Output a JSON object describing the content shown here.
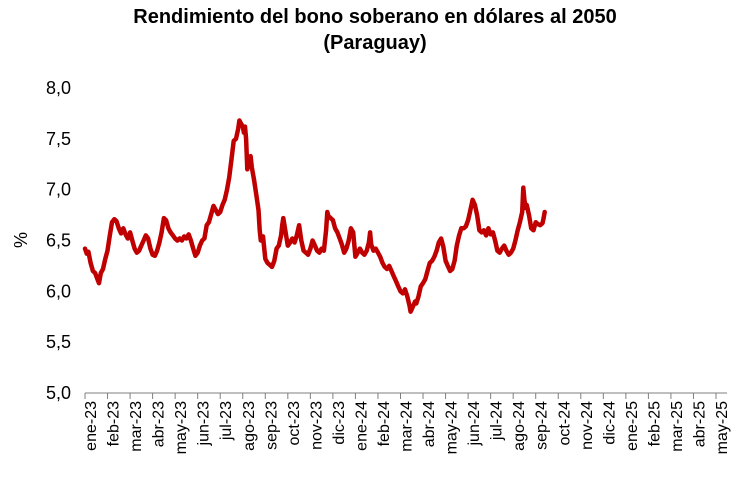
{
  "chart_data": {
    "type": "line",
    "title": "Rendimiento del bono soberano en dólares al 2050",
    "subtitle": "(Paraguay)",
    "ylabel": "%",
    "xlabel": "",
    "ylim": [
      5.0,
      8.0
    ],
    "y_ticks": [
      "5,0",
      "5,5",
      "6,0",
      "6,5",
      "7,0",
      "7,5",
      "8,0"
    ],
    "x_tick_labels": [
      "ene-23",
      "feb-23",
      "mar-23",
      "abr-23",
      "may-23",
      "jun-23",
      "jul-23",
      "ago-23",
      "sep-23",
      "oct-23",
      "nov-23",
      "dic-23",
      "ene-24",
      "feb-24",
      "mar-24",
      "abr-24",
      "may-24",
      "jun-24",
      "jul-24",
      "ago-24",
      "sep-24",
      "oct-24",
      "nov-24",
      "dic-24",
      "ene-25",
      "feb-25",
      "mar-25",
      "abr-25",
      "may-25"
    ],
    "grid": false,
    "legend": "none",
    "series": [
      {
        "color": "#c00000",
        "points": [
          [
            0.0,
            6.42
          ],
          [
            0.08,
            6.37
          ],
          [
            0.15,
            6.39
          ],
          [
            0.25,
            6.28
          ],
          [
            0.35,
            6.2
          ],
          [
            0.45,
            6.18
          ],
          [
            0.55,
            6.12
          ],
          [
            0.62,
            6.08
          ],
          [
            0.7,
            6.18
          ],
          [
            0.8,
            6.22
          ],
          [
            0.9,
            6.32
          ],
          [
            1.0,
            6.4
          ],
          [
            1.1,
            6.55
          ],
          [
            1.2,
            6.68
          ],
          [
            1.3,
            6.71
          ],
          [
            1.4,
            6.69
          ],
          [
            1.5,
            6.62
          ],
          [
            1.6,
            6.57
          ],
          [
            1.7,
            6.62
          ],
          [
            1.8,
            6.56
          ],
          [
            1.9,
            6.52
          ],
          [
            2.0,
            6.58
          ],
          [
            2.1,
            6.5
          ],
          [
            2.2,
            6.42
          ],
          [
            2.3,
            6.38
          ],
          [
            2.4,
            6.4
          ],
          [
            2.5,
            6.45
          ],
          [
            2.6,
            6.5
          ],
          [
            2.7,
            6.55
          ],
          [
            2.8,
            6.52
          ],
          [
            2.9,
            6.42
          ],
          [
            3.0,
            6.36
          ],
          [
            3.1,
            6.35
          ],
          [
            3.2,
            6.4
          ],
          [
            3.3,
            6.48
          ],
          [
            3.4,
            6.58
          ],
          [
            3.5,
            6.72
          ],
          [
            3.6,
            6.7
          ],
          [
            3.7,
            6.62
          ],
          [
            3.8,
            6.58
          ],
          [
            3.9,
            6.55
          ],
          [
            4.0,
            6.52
          ],
          [
            4.1,
            6.5
          ],
          [
            4.2,
            6.52
          ],
          [
            4.3,
            6.5
          ],
          [
            4.4,
            6.54
          ],
          [
            4.5,
            6.52
          ],
          [
            4.6,
            6.56
          ],
          [
            4.7,
            6.5
          ],
          [
            4.8,
            6.42
          ],
          [
            4.9,
            6.35
          ],
          [
            5.0,
            6.38
          ],
          [
            5.1,
            6.45
          ],
          [
            5.2,
            6.5
          ],
          [
            5.3,
            6.52
          ],
          [
            5.4,
            6.65
          ],
          [
            5.5,
            6.68
          ],
          [
            5.6,
            6.76
          ],
          [
            5.7,
            6.84
          ],
          [
            5.8,
            6.8
          ],
          [
            5.9,
            6.76
          ],
          [
            6.0,
            6.78
          ],
          [
            6.1,
            6.85
          ],
          [
            6.2,
            6.9
          ],
          [
            6.3,
            7.0
          ],
          [
            6.4,
            7.12
          ],
          [
            6.5,
            7.3
          ],
          [
            6.6,
            7.48
          ],
          [
            6.7,
            7.5
          ],
          [
            6.8,
            7.6
          ],
          [
            6.85,
            7.68
          ],
          [
            6.9,
            7.66
          ],
          [
            7.0,
            7.62
          ],
          [
            7.05,
            7.56
          ],
          [
            7.1,
            7.62
          ],
          [
            7.15,
            7.5
          ],
          [
            7.2,
            7.2
          ],
          [
            7.3,
            7.3
          ],
          [
            7.35,
            7.33
          ],
          [
            7.4,
            7.22
          ],
          [
            7.5,
            7.1
          ],
          [
            7.6,
            6.95
          ],
          [
            7.7,
            6.8
          ],
          [
            7.75,
            6.6
          ],
          [
            7.8,
            6.5
          ],
          [
            7.9,
            6.54
          ],
          [
            8.0,
            6.32
          ],
          [
            8.1,
            6.28
          ],
          [
            8.2,
            6.26
          ],
          [
            8.3,
            6.24
          ],
          [
            8.4,
            6.3
          ],
          [
            8.5,
            6.42
          ],
          [
            8.6,
            6.45
          ],
          [
            8.7,
            6.55
          ],
          [
            8.75,
            6.65
          ],
          [
            8.8,
            6.72
          ],
          [
            8.9,
            6.58
          ],
          [
            9.0,
            6.45
          ],
          [
            9.1,
            6.48
          ],
          [
            9.2,
            6.52
          ],
          [
            9.3,
            6.48
          ],
          [
            9.4,
            6.55
          ],
          [
            9.5,
            6.65
          ],
          [
            9.6,
            6.5
          ],
          [
            9.7,
            6.4
          ],
          [
            9.8,
            6.38
          ],
          [
            9.9,
            6.36
          ],
          [
            10.0,
            6.42
          ],
          [
            10.1,
            6.5
          ],
          [
            10.2,
            6.45
          ],
          [
            10.3,
            6.4
          ],
          [
            10.4,
            6.38
          ],
          [
            10.5,
            6.42
          ],
          [
            10.6,
            6.4
          ],
          [
            10.7,
            6.6
          ],
          [
            10.75,
            6.78
          ],
          [
            10.8,
            6.74
          ],
          [
            10.9,
            6.72
          ],
          [
            11.0,
            6.7
          ],
          [
            11.1,
            6.62
          ],
          [
            11.2,
            6.58
          ],
          [
            11.3,
            6.52
          ],
          [
            11.4,
            6.46
          ],
          [
            11.5,
            6.38
          ],
          [
            11.6,
            6.42
          ],
          [
            11.7,
            6.5
          ],
          [
            11.8,
            6.62
          ],
          [
            11.9,
            6.58
          ],
          [
            12.0,
            6.34
          ],
          [
            12.1,
            6.38
          ],
          [
            12.2,
            6.42
          ],
          [
            12.3,
            6.38
          ],
          [
            12.4,
            6.36
          ],
          [
            12.5,
            6.4
          ],
          [
            12.6,
            6.48
          ],
          [
            12.65,
            6.58
          ],
          [
            12.7,
            6.46
          ],
          [
            12.8,
            6.4
          ],
          [
            12.9,
            6.42
          ],
          [
            13.0,
            6.38
          ],
          [
            13.1,
            6.34
          ],
          [
            13.2,
            6.28
          ],
          [
            13.3,
            6.24
          ],
          [
            13.4,
            6.22
          ],
          [
            13.5,
            6.25
          ],
          [
            13.6,
            6.2
          ],
          [
            13.7,
            6.15
          ],
          [
            13.8,
            6.1
          ],
          [
            13.9,
            6.05
          ],
          [
            14.0,
            6.0
          ],
          [
            14.1,
            5.98
          ],
          [
            14.2,
            6.02
          ],
          [
            14.3,
            5.95
          ],
          [
            14.4,
            5.86
          ],
          [
            14.45,
            5.8
          ],
          [
            14.55,
            5.85
          ],
          [
            14.65,
            5.9
          ],
          [
            14.7,
            5.88
          ],
          [
            14.8,
            5.95
          ],
          [
            14.9,
            6.05
          ],
          [
            15.0,
            6.08
          ],
          [
            15.1,
            6.12
          ],
          [
            15.2,
            6.2
          ],
          [
            15.3,
            6.28
          ],
          [
            15.4,
            6.3
          ],
          [
            15.5,
            6.34
          ],
          [
            15.6,
            6.4
          ],
          [
            15.7,
            6.48
          ],
          [
            15.8,
            6.52
          ],
          [
            15.9,
            6.44
          ],
          [
            16.0,
            6.3
          ],
          [
            16.1,
            6.25
          ],
          [
            16.2,
            6.2
          ],
          [
            16.3,
            6.22
          ],
          [
            16.4,
            6.3
          ],
          [
            16.5,
            6.45
          ],
          [
            16.6,
            6.55
          ],
          [
            16.7,
            6.62
          ],
          [
            16.8,
            6.62
          ],
          [
            16.9,
            6.64
          ],
          [
            17.0,
            6.7
          ],
          [
            17.1,
            6.8
          ],
          [
            17.2,
            6.9
          ],
          [
            17.3,
            6.85
          ],
          [
            17.4,
            6.75
          ],
          [
            17.5,
            6.6
          ],
          [
            17.6,
            6.58
          ],
          [
            17.7,
            6.6
          ],
          [
            17.8,
            6.55
          ],
          [
            17.9,
            6.62
          ],
          [
            18.0,
            6.56
          ],
          [
            18.1,
            6.58
          ],
          [
            18.2,
            6.5
          ],
          [
            18.3,
            6.4
          ],
          [
            18.4,
            6.38
          ],
          [
            18.5,
            6.42
          ],
          [
            18.6,
            6.45
          ],
          [
            18.7,
            6.4
          ],
          [
            18.8,
            6.36
          ],
          [
            18.9,
            6.38
          ],
          [
            19.0,
            6.42
          ],
          [
            19.1,
            6.5
          ],
          [
            19.2,
            6.6
          ],
          [
            19.3,
            6.68
          ],
          [
            19.4,
            6.78
          ],
          [
            19.45,
            7.02
          ],
          [
            19.5,
            6.9
          ],
          [
            19.55,
            6.82
          ],
          [
            19.6,
            6.85
          ],
          [
            19.7,
            6.75
          ],
          [
            19.8,
            6.62
          ],
          [
            19.9,
            6.6
          ],
          [
            20.0,
            6.68
          ],
          [
            20.1,
            6.66
          ],
          [
            20.2,
            6.65
          ],
          [
            20.3,
            6.67
          ],
          [
            20.35,
            6.72
          ],
          [
            20.4,
            6.78
          ]
        ]
      }
    ]
  }
}
